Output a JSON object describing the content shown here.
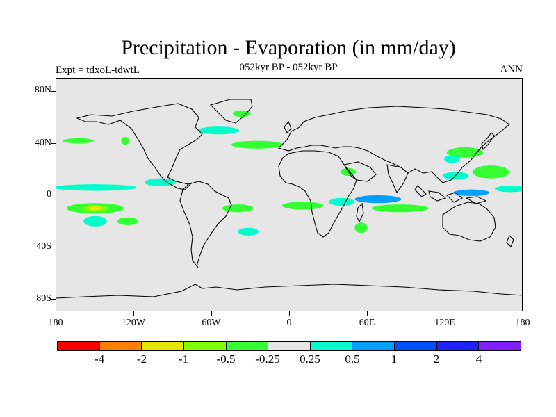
{
  "header": {
    "title": "Precipitation - Evaporation (in mm/day)",
    "subtitle": "052kyr BP - 052kyr BP",
    "left_string": "Expt = tdxoL-tdwtL",
    "right_string": "ANN"
  },
  "chart_data": {
    "type": "heatmap",
    "title": "Precipitation - Evaporation (in mm/day)",
    "subtitle": "052kyr BP - 052kyr BP",
    "projection": "cylindrical-equidistant",
    "xlim": [
      -180,
      180
    ],
    "ylim": [
      -90,
      90
    ],
    "lat_ticks": [
      "80N",
      "40N",
      "0",
      "40S",
      "80S"
    ],
    "lat_values": [
      80,
      40,
      0,
      -40,
      -80
    ],
    "lon_ticks": [
      "180",
      "120W",
      "60W",
      "0",
      "60E",
      "120E",
      "180"
    ],
    "lon_values": [
      -180,
      -120,
      -60,
      0,
      60,
      120,
      180
    ],
    "missing_color": "#e6e6e6",
    "colorbar": {
      "colors": [
        "#ff0000",
        "#ff8000",
        "#e6e600",
        "#80ff00",
        "#33ff33",
        "#e6e6e6",
        "#00ffcc",
        "#00a0ff",
        "#0050ff",
        "#2020ff",
        "#8020ff"
      ],
      "labels": [
        "-4",
        "-2",
        "-1",
        "-0.5",
        "-0.25",
        "0.25",
        "0.5",
        "1",
        "2",
        "4"
      ]
    },
    "regions": [
      {
        "lon": -150,
        "lat": -10,
        "rx": 22,
        "ry": 4,
        "level": "#33ff33"
      },
      {
        "lon": -150,
        "lat": -10,
        "rx": 10,
        "ry": 2.5,
        "level": "#80ff00"
      },
      {
        "lon": -150,
        "lat": -10,
        "rx": 5,
        "ry": 1.5,
        "level": "#e6e600"
      },
      {
        "lon": -150,
        "lat": 6,
        "rx": 32,
        "ry": 2.5,
        "level": "#00ffcc"
      },
      {
        "lon": -100,
        "lat": 10,
        "rx": 12,
        "ry": 3,
        "level": "#00ffcc"
      },
      {
        "lon": -150,
        "lat": -20,
        "rx": 9,
        "ry": 4,
        "level": "#00ffcc"
      },
      {
        "lon": -125,
        "lat": -20,
        "rx": 8,
        "ry": 3,
        "level": "#33ff33"
      },
      {
        "lon": -163,
        "lat": 42,
        "rx": 12,
        "ry": 2,
        "level": "#33ff33"
      },
      {
        "lon": -127,
        "lat": 42,
        "rx": 3,
        "ry": 3,
        "level": "#33ff33"
      },
      {
        "lon": -55,
        "lat": 50,
        "rx": 16,
        "ry": 3,
        "level": "#00ffcc"
      },
      {
        "lon": -37,
        "lat": 63,
        "rx": 7,
        "ry": 2.5,
        "level": "#33ff33"
      },
      {
        "lon": -25,
        "lat": 39,
        "rx": 20,
        "ry": 3,
        "level": "#33ff33"
      },
      {
        "lon": -40,
        "lat": -10,
        "rx": 12,
        "ry": 3,
        "level": "#33ff33"
      },
      {
        "lon": 10,
        "lat": -8,
        "rx": 16,
        "ry": 3,
        "level": "#33ff33"
      },
      {
        "lon": 40,
        "lat": -5,
        "rx": 10,
        "ry": 3,
        "level": "#00ffcc"
      },
      {
        "lon": 68,
        "lat": -3,
        "rx": 18,
        "ry": 3,
        "level": "#00a0ff"
      },
      {
        "lon": 85,
        "lat": -10,
        "rx": 22,
        "ry": 3,
        "level": "#33ff33"
      },
      {
        "lon": 128,
        "lat": 15,
        "rx": 10,
        "ry": 3,
        "level": "#00ffcc"
      },
      {
        "lon": 155,
        "lat": 18,
        "rx": 14,
        "ry": 5,
        "level": "#33ff33"
      },
      {
        "lon": 140,
        "lat": 2,
        "rx": 14,
        "ry": 2.5,
        "level": "#00a0ff"
      },
      {
        "lon": 170,
        "lat": 5,
        "rx": 12,
        "ry": 2.5,
        "level": "#00ffcc"
      },
      {
        "lon": 135,
        "lat": 33,
        "rx": 14,
        "ry": 4,
        "level": "#33ff33"
      },
      {
        "lon": 125,
        "lat": 28,
        "rx": 6,
        "ry": 3,
        "level": "#00ffcc"
      },
      {
        "lon": 55,
        "lat": -25,
        "rx": 5,
        "ry": 4,
        "level": "#33ff33"
      },
      {
        "lon": -32,
        "lat": -28,
        "rx": 8,
        "ry": 3,
        "level": "#00ffcc"
      },
      {
        "lon": 45,
        "lat": 18,
        "rx": 6,
        "ry": 3,
        "level": "#33ff33"
      }
    ]
  }
}
